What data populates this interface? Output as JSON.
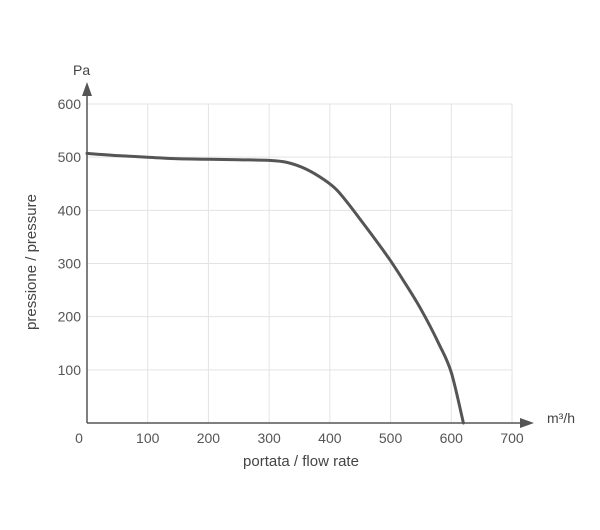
{
  "chart_data": {
    "type": "line",
    "title": "",
    "xlabel": "portata / flow rate",
    "ylabel": "pressione / pressure",
    "x_unit": "m³/h",
    "y_unit": "Pa",
    "xlim": [
      0,
      700
    ],
    "ylim": [
      0,
      600
    ],
    "x_ticks": [
      0,
      100,
      200,
      300,
      400,
      500,
      600,
      700
    ],
    "y_ticks": [
      100,
      200,
      300,
      400,
      500,
      600
    ],
    "grid": true,
    "series": [
      {
        "x": [
          0,
          50,
          100,
          150,
          200,
          250,
          300,
          330,
          360,
          390,
          410,
          430,
          450,
          480,
          500,
          520,
          550,
          580,
          600,
          620
        ],
        "y": [
          507,
          503,
          500,
          497,
          496,
          495,
          494,
          490,
          478,
          458,
          440,
          413,
          383,
          337,
          305,
          270,
          214,
          148,
          95,
          0
        ]
      }
    ],
    "colors": {
      "curve": "#555555",
      "axis": "#555555",
      "grid": "#e3e3e3",
      "text": "#555555"
    }
  }
}
